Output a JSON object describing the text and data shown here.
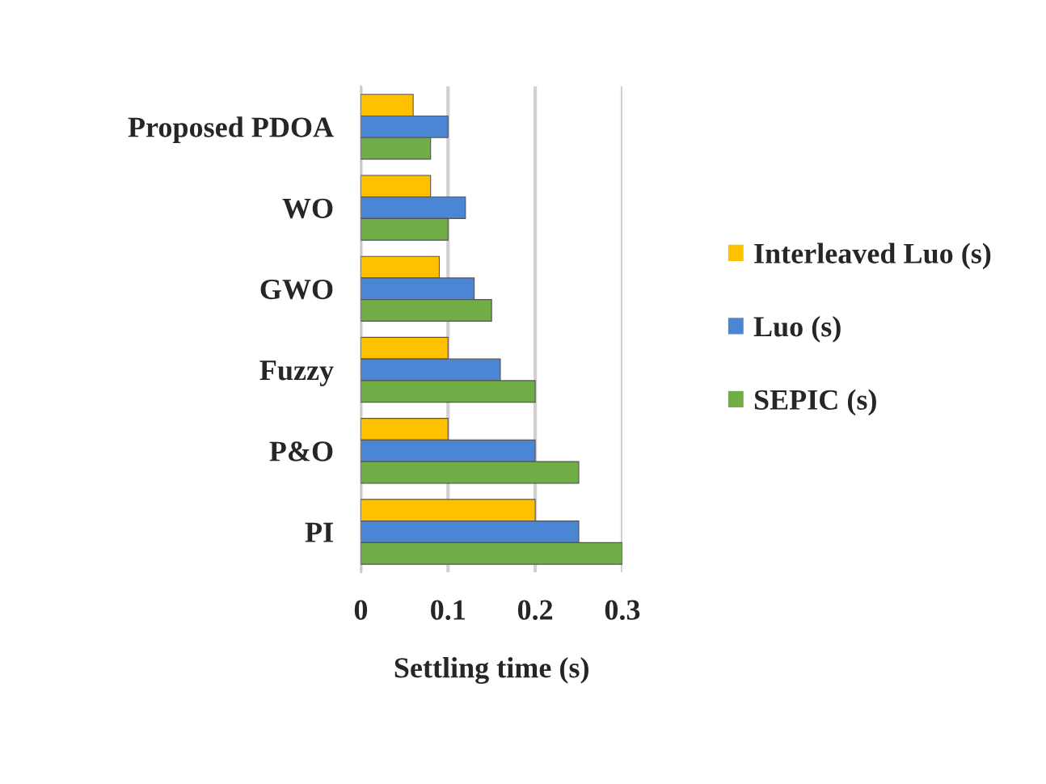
{
  "chart_data": {
    "type": "bar",
    "orientation": "horizontal",
    "xlabel": "Settling time (s)",
    "categories": [
      "Proposed PDOA",
      "WO",
      "GWO",
      "Fuzzy",
      "P&O",
      "PI"
    ],
    "series": [
      {
        "name": "Interleaved Luo (s)",
        "color": "#ffc000",
        "values": [
          0.06,
          0.08,
          0.09,
          0.1,
          0.1,
          0.2
        ]
      },
      {
        "name": "Luo (s)",
        "color": "#4a86d4",
        "values": [
          0.1,
          0.12,
          0.13,
          0.16,
          0.2,
          0.25
        ]
      },
      {
        "name": "SEPIC (s)",
        "color": "#70ad47",
        "values": [
          0.08,
          0.1,
          0.15,
          0.2,
          0.25,
          0.3
        ]
      }
    ],
    "xlim": [
      0,
      0.3
    ],
    "xticks": [
      0,
      0.1,
      0.2,
      0.3
    ],
    "grid": "x",
    "legend": "right"
  }
}
